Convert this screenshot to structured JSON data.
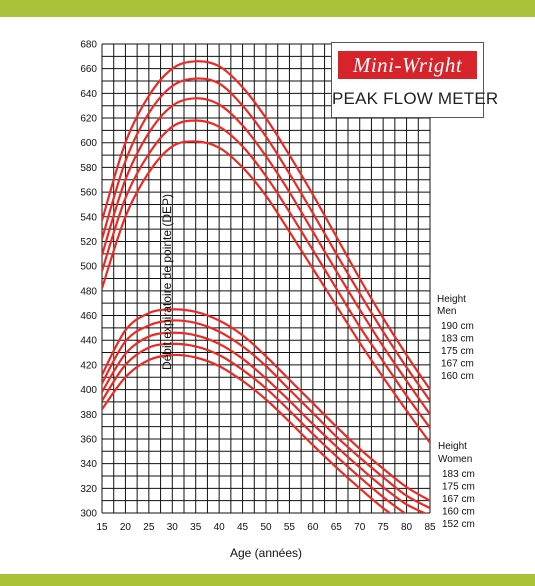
{
  "theme": {
    "band": "#a8c33a",
    "grid": "#111111",
    "curve": "#ec2a25"
  },
  "logo": {
    "brand": "Mini-Wright",
    "subtitle": "PEAK FLOW METER"
  },
  "chart_data": {
    "type": "line",
    "xlabel": "Age (années)",
    "ylabel": "Débit expiratoire de pointe (DEP)",
    "xlim": [
      15,
      85
    ],
    "ylim": [
      300,
      680
    ],
    "x_ticks": [
      15,
      20,
      25,
      30,
      35,
      40,
      45,
      50,
      55,
      60,
      65,
      70,
      75,
      80,
      85
    ],
    "y_ticks": [
      300,
      320,
      340,
      360,
      380,
      400,
      420,
      440,
      460,
      480,
      500,
      520,
      540,
      560,
      580,
      600,
      620,
      640,
      660,
      680
    ],
    "grid": true,
    "x": [
      15,
      20,
      25,
      30,
      35,
      40,
      45,
      50,
      55,
      60,
      65,
      70,
      75,
      80,
      85
    ],
    "groups": [
      {
        "title": "Height",
        "subtitle": "Men",
        "series": [
          {
            "name": "190 cm",
            "values": [
              537,
              600,
              638,
              660,
              666,
              662,
              645,
              620,
              590,
              558,
              524,
              490,
              458,
              428,
              400
            ]
          },
          {
            "name": "183 cm",
            "values": [
              522,
              585,
              624,
              646,
              652,
              648,
              630,
              605,
              575,
              543,
              510,
              478,
              447,
              418,
              391
            ]
          },
          {
            "name": "175 cm",
            "values": [
              509,
              570,
              608,
              630,
              636,
              631,
              614,
              589,
              560,
              528,
              496,
              465,
              435,
              407,
              380
            ]
          },
          {
            "name": "167 cm",
            "values": [
              496,
              555,
              591,
              613,
              618,
              613,
              597,
              573,
              544,
              513,
              482,
              451,
              423,
              395,
              369
            ]
          },
          {
            "name": "160 cm",
            "values": [
              482,
              540,
              576,
              597,
              601,
              596,
              580,
              557,
              528,
              498,
              468,
              438,
              410,
              383,
              357
            ]
          }
        ]
      },
      {
        "title": "Height",
        "subtitle": "Women",
        "series": [
          {
            "name": "183 cm",
            "values": [
              412,
              448,
              462,
              465,
              463,
              456,
              444,
              427,
              408,
              389,
              370,
              352,
              336,
              321,
              310
            ]
          },
          {
            "name": "175 cm",
            "values": [
              405,
              439,
              452,
              456,
              454,
              447,
              435,
              419,
              400,
              381,
              362,
              345,
              329,
              314,
              304
            ]
          },
          {
            "name": "167 cm",
            "values": [
              398,
              429,
              443,
              446,
              444,
              437,
              425,
              409,
              391,
              372,
              354,
              337,
              321,
              307,
              298
            ]
          },
          {
            "name": "160 cm",
            "values": [
              391,
              420,
              434,
              437,
              435,
              428,
              416,
              401,
              383,
              364,
              346,
              329,
              313,
              299,
              290
            ]
          },
          {
            "name": "152 cm",
            "values": [
              384,
              410,
              424,
              428,
              426,
              419,
              407,
              392,
              374,
              355,
              337,
              320,
              304,
              291,
              282
            ]
          }
        ]
      }
    ]
  }
}
